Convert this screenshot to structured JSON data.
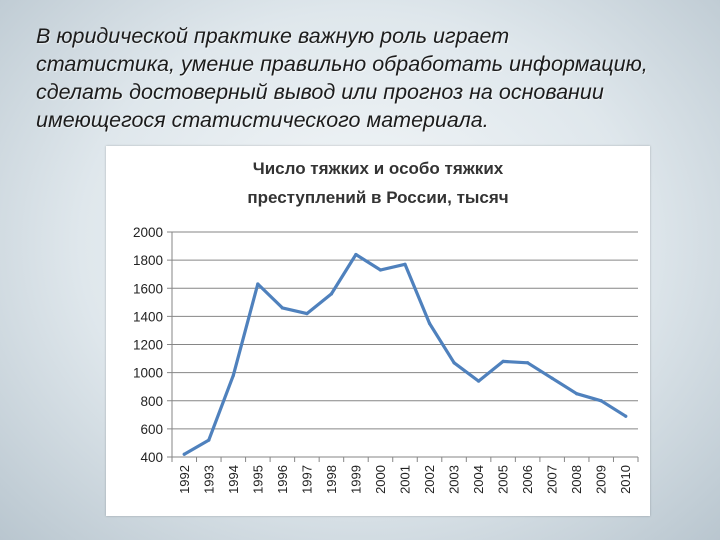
{
  "slide": {
    "lines": [
      "В юридической практике важную роль играет",
      "статистика, умение правильно обработать информацию,",
      "сделать достоверный вывод или прогноз на основании",
      "имеющегося статистического материала."
    ]
  },
  "chart_data": {
    "type": "line",
    "title_lines": [
      "Число тяжких и особо тяжких",
      "преступлений в России, тысяч"
    ],
    "xlabel": "",
    "ylabel": "",
    "x": [
      "1992",
      "1993",
      "1994",
      "1995",
      "1996",
      "1997",
      "1998",
      "1999",
      "2000",
      "2001",
      "2002",
      "2003",
      "2004",
      "2005",
      "2006",
      "2007",
      "2008",
      "2009",
      "2010"
    ],
    "series": [
      {
        "values": [
          420,
          520,
          980,
          1630,
          1460,
          1420,
          1560,
          1840,
          1730,
          1770,
          1350,
          1070,
          940,
          1080,
          1070,
          960,
          850,
          800,
          690
        ]
      }
    ],
    "ylim": [
      400,
      2000
    ],
    "yticks": [
      400,
      600,
      800,
      1000,
      1200,
      1400,
      1600,
      1800,
      2000
    ],
    "grid": true,
    "legend": "none",
    "colors": {
      "line": "#4f81bd",
      "grid": "#868686",
      "axis": "#868686"
    }
  }
}
